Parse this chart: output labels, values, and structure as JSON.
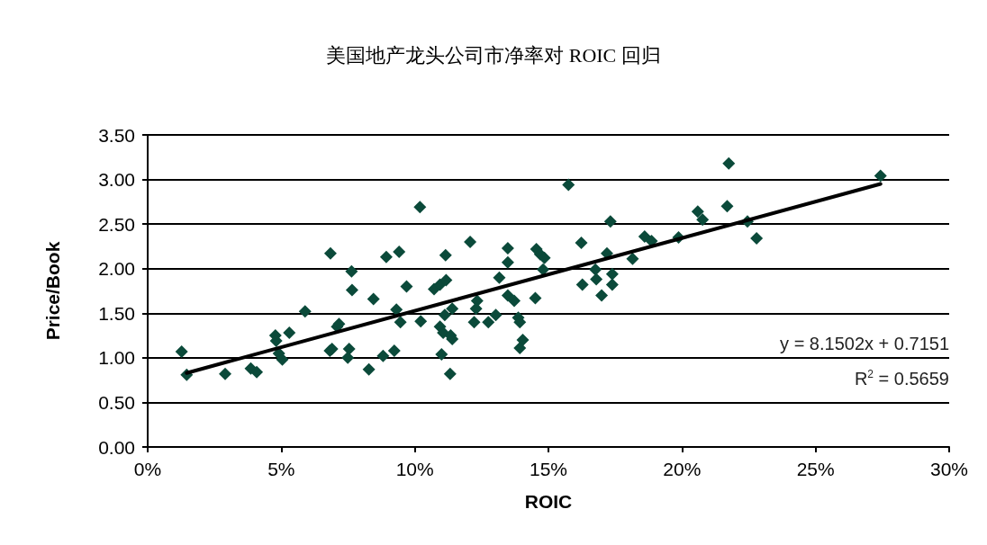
{
  "chart_data": {
    "type": "scatter",
    "title": "美国地产龙头公司市净率对 ROIC 回归",
    "xlabel": "ROIC",
    "ylabel": "Price/Book",
    "xlim": [
      0,
      0.3
    ],
    "xticks": [
      {
        "value": 0,
        "label": "0%"
      },
      {
        "value": 0.05,
        "label": "5%"
      },
      {
        "value": 0.1,
        "label": "10%"
      },
      {
        "value": 0.15,
        "label": "15%"
      },
      {
        "value": 0.2,
        "label": "20%"
      },
      {
        "value": 0.25,
        "label": "25%"
      },
      {
        "value": 0.3,
        "label": "30%"
      }
    ],
    "ylim": [
      0,
      3.5
    ],
    "yticks": [
      {
        "value": 0,
        "label": "0.00"
      },
      {
        "value": 0.5,
        "label": "0.50"
      },
      {
        "value": 1,
        "label": "1.00"
      },
      {
        "value": 1.5,
        "label": "1.50"
      },
      {
        "value": 2,
        "label": "2.00"
      },
      {
        "value": 2.5,
        "label": "2.50"
      },
      {
        "value": 3,
        "label": "3.00"
      },
      {
        "value": 3.5,
        "label": "3.50"
      }
    ],
    "grid": "y",
    "marker": "diamond",
    "annotations": [
      "y = 8.1502x + 0.7151",
      "R$^{2}$ = 0.5659"
    ],
    "series": [
      {
        "color": "#0b4a3a",
        "x": [
          0.0127,
          0.0146,
          0.029,
          0.0386,
          0.0408,
          0.0478,
          0.0481,
          0.0491,
          0.0504,
          0.053,
          0.0589,
          0.0684,
          0.0682,
          0.069,
          0.0709,
          0.0716,
          0.0763,
          0.0765,
          0.0754,
          0.0749,
          0.0828,
          0.0845,
          0.0881,
          0.0893,
          0.0941,
          0.0923,
          0.0969,
          0.0931,
          0.0946,
          0.1019,
          0.1022,
          0.1072,
          0.1094,
          0.1117,
          0.1115,
          0.114,
          0.1112,
          0.1094,
          0.1106,
          0.114,
          0.1134,
          0.11,
          0.1132,
          0.1207,
          0.1233,
          0.1229,
          0.1222,
          0.1275,
          0.1303,
          0.1316,
          0.1348,
          0.1348,
          0.1348,
          0.1372,
          0.1387,
          0.1393,
          0.1404,
          0.1393,
          0.1451,
          0.1455,
          0.1469,
          0.1485,
          0.148,
          0.1575,
          0.1623,
          0.1627,
          0.1676,
          0.1679,
          0.1699,
          0.1732,
          0.1719,
          0.1739,
          0.1739,
          0.1815,
          0.186,
          0.1886,
          0.1987,
          0.2059,
          0.2077,
          0.2175,
          0.2169,
          0.2245,
          0.2279,
          0.2743
        ],
        "values": [
          1.07,
          0.81,
          0.82,
          0.88,
          0.84,
          1.25,
          1.19,
          1.05,
          0.98,
          1.28,
          1.52,
          2.17,
          1.08,
          1.1,
          1.35,
          1.38,
          1.97,
          1.76,
          1.1,
          1.0,
          0.87,
          1.66,
          1.02,
          2.13,
          2.19,
          1.08,
          1.8,
          1.54,
          1.4,
          2.69,
          1.41,
          1.77,
          1.82,
          1.87,
          2.15,
          1.55,
          1.48,
          1.35,
          1.28,
          1.21,
          1.25,
          1.04,
          0.82,
          2.3,
          1.64,
          1.55,
          1.4,
          1.4,
          1.48,
          1.9,
          2.23,
          2.07,
          1.7,
          1.64,
          1.45,
          1.4,
          1.2,
          1.11,
          1.67,
          2.22,
          2.16,
          2.12,
          1.99,
          2.94,
          2.29,
          1.82,
          1.99,
          1.88,
          1.7,
          2.53,
          2.17,
          1.94,
          1.82,
          2.11,
          2.36,
          2.31,
          2.35,
          2.64,
          2.55,
          3.18,
          2.7,
          2.53,
          2.34,
          3.04
        ]
      },
      {
        "type": "line",
        "color": "#000000",
        "marker": "none",
        "line_style": "solid",
        "x": [
          0.0146,
          0.2743
        ],
        "values": [
          0.83,
          2.95
        ]
      }
    ]
  }
}
